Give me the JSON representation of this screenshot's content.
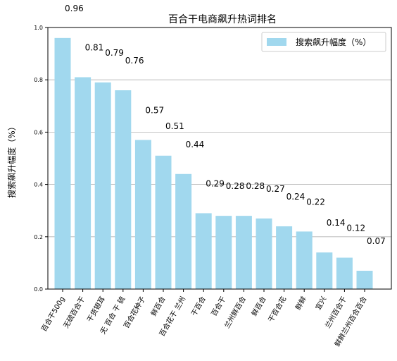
{
  "chart_data": {
    "type": "bar",
    "title": "百合干电商飙升热词排名",
    "xlabel": "",
    "ylabel": "搜索飙升幅度（%）",
    "ylim": [
      0,
      1.0
    ],
    "yticks": [
      "0.0",
      "0.2",
      "0.4",
      "0.6",
      "0.8",
      "1.0"
    ],
    "grid": "y",
    "legend_position": "top-right",
    "bar_color": "#a1d8ee",
    "categories": [
      "百合干500g",
      "无硫百合干",
      "干货银耳",
      "无 百合 干 硫",
      "百合花种子",
      "鲜百合",
      "百合花干 兰州",
      "干百合",
      "百合干",
      "兰州鲜百合",
      "鲜百合",
      "干百合花",
      "鲜鲜",
      "宜兴",
      "兰州百合干",
      "鲜鲜兰州百合百合"
    ],
    "series": [
      {
        "name": "搜索飙升幅度（%）",
        "values": [
          0.96,
          0.81,
          0.79,
          0.76,
          0.57,
          0.51,
          0.44,
          0.29,
          0.28,
          0.28,
          0.27,
          0.24,
          0.22,
          0.14,
          0.12,
          0.07
        ],
        "labels": [
          "0.96",
          "0.81",
          "0.79",
          "0.76",
          "0.57",
          "0.51",
          "0.44",
          "0.29",
          "0.28",
          "0.28",
          "0.27",
          "0.24",
          "0.22",
          "0.14",
          "0.12",
          "0.07"
        ]
      }
    ]
  }
}
